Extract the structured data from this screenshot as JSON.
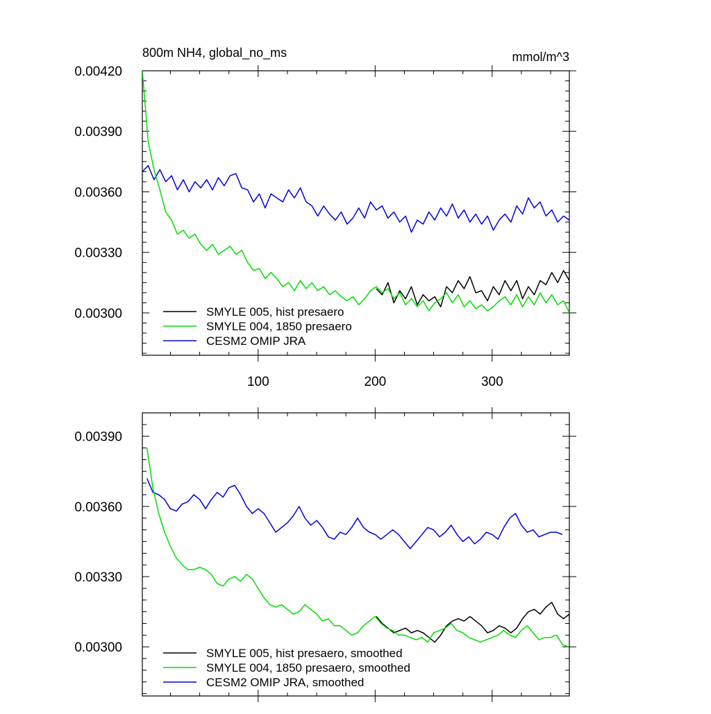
{
  "colors": {
    "hist": "#000000",
    "p1850": "#00dd00",
    "omip": "#0000dd",
    "axis": "#000000",
    "background": "#ffffff"
  },
  "chart_data": [
    {
      "type": "line",
      "title": "800m NH4, global_no_ms",
      "units": "mmol/m^3",
      "xlim": [
        1,
        366
      ],
      "ylim": [
        0.00279,
        0.0042
      ],
      "xticks": [
        100,
        200,
        300
      ],
      "xtick_labels": [
        "100",
        "200",
        "300"
      ],
      "yticks": [
        0.0042,
        0.0039,
        0.0036,
        0.0033,
        0.003
      ],
      "ytick_labels": [
        "0.00420",
        "0.00390",
        "0.00360",
        "0.00330",
        "0.00300"
      ],
      "legend_position": "bottom-left",
      "grid": false,
      "series": [
        {
          "name": "SMYLE 005, hist presaero",
          "color_key": "hist",
          "x_start": 201,
          "x_step": 5,
          "values": [
            0.00312,
            0.00309,
            0.00315,
            0.00305,
            0.00311,
            0.00307,
            0.00313,
            0.00304,
            0.00309,
            0.00306,
            0.00308,
            0.00303,
            0.00313,
            0.0031,
            0.00316,
            0.00312,
            0.00318,
            0.0031,
            0.00311,
            0.00306,
            0.00313,
            0.00309,
            0.00316,
            0.00311,
            0.00316,
            0.00307,
            0.00313,
            0.00309,
            0.00316,
            0.00314,
            0.0032,
            0.00315,
            0.00321,
            0.00316,
            0.00322,
            0.00314,
            0.0032,
            0.00311
          ]
        },
        {
          "name": "SMYLE 004, 1850 presaero",
          "color_key": "p1850",
          "x_start": 1,
          "x_step": 5,
          "values": [
            0.0042,
            0.00385,
            0.00371,
            0.00361,
            0.0035,
            0.00346,
            0.00339,
            0.00341,
            0.00337,
            0.00339,
            0.00334,
            0.00331,
            0.00334,
            0.00329,
            0.00331,
            0.00333,
            0.00329,
            0.00331,
            0.00325,
            0.00321,
            0.00322,
            0.00317,
            0.0032,
            0.00317,
            0.00313,
            0.00315,
            0.00311,
            0.00316,
            0.00312,
            0.00315,
            0.00311,
            0.00313,
            0.00309,
            0.00311,
            0.00308,
            0.00306,
            0.00308,
            0.00304,
            0.00307,
            0.00311,
            0.00313,
            0.0031,
            0.00312,
            0.00307,
            0.0031,
            0.00304,
            0.00307,
            0.00303,
            0.00306,
            0.00301,
            0.00305,
            0.00307,
            0.0031,
            0.00305,
            0.00309,
            0.00303,
            0.00306,
            0.00302,
            0.00304,
            0.00301,
            0.00303,
            0.00306,
            0.00308,
            0.00304,
            0.00309,
            0.00303,
            0.00308,
            0.00304,
            0.0031,
            0.00305,
            0.00309,
            0.00304,
            0.00306,
            0.003
          ]
        },
        {
          "name": "CESM2 OMIP JRA",
          "color_key": "omip",
          "x_start": 1,
          "x_step": 5,
          "values": [
            0.0037,
            0.00373,
            0.00366,
            0.00371,
            0.00365,
            0.00368,
            0.00361,
            0.00366,
            0.0036,
            0.00365,
            0.00362,
            0.00366,
            0.00361,
            0.00367,
            0.00363,
            0.00368,
            0.00369,
            0.00362,
            0.00361,
            0.00355,
            0.00359,
            0.00352,
            0.00359,
            0.00357,
            0.00355,
            0.00361,
            0.00357,
            0.00362,
            0.00355,
            0.00353,
            0.00348,
            0.00353,
            0.00349,
            0.00346,
            0.0035,
            0.00344,
            0.00347,
            0.00352,
            0.00347,
            0.00355,
            0.00351,
            0.00353,
            0.00347,
            0.0035,
            0.00345,
            0.00348,
            0.0034,
            0.00346,
            0.00344,
            0.0035,
            0.00346,
            0.00352,
            0.00348,
            0.00354,
            0.00347,
            0.00351,
            0.00345,
            0.00349,
            0.00344,
            0.00348,
            0.00341,
            0.00346,
            0.00349,
            0.00345,
            0.00353,
            0.00349,
            0.00357,
            0.00352,
            0.00355,
            0.00348,
            0.00351,
            0.00345,
            0.00348,
            0.00346
          ]
        }
      ]
    },
    {
      "type": "line",
      "title": "",
      "xlim": [
        1,
        366
      ],
      "ylim": [
        0.00279,
        0.004
      ],
      "xticks": [
        100,
        200,
        300
      ],
      "xtick_labels": [
        "",
        "",
        ""
      ],
      "yticks": [
        0.0039,
        0.0036,
        0.0033,
        0.003
      ],
      "ytick_labels": [
        "0.00390",
        "0.00360",
        "0.00330",
        "0.00300"
      ],
      "legend_position": "bottom-left",
      "grid": false,
      "series": [
        {
          "name": "SMYLE 005, hist presaero, smoothed",
          "color_key": "hist",
          "x_start": 201,
          "x_step": 5,
          "values": [
            0.00313,
            0.0031,
            0.00308,
            0.00306,
            0.00307,
            0.00308,
            0.00306,
            0.00307,
            0.00306,
            0.00304,
            0.00302,
            0.00305,
            0.00309,
            0.00311,
            0.00312,
            0.00311,
            0.00313,
            0.00311,
            0.00309,
            0.00306,
            0.00307,
            0.00309,
            0.00308,
            0.00306,
            0.00308,
            0.00312,
            0.00315,
            0.00316,
            0.00314,
            0.00317,
            0.00319,
            0.00314,
            0.00312,
            0.00314,
            0.00312,
            0.00314,
            0.00313,
            0.00311
          ]
        },
        {
          "name": "SMYLE 004, 1850 presaero, smoothed",
          "color_key": "p1850",
          "x_start": 5,
          "x_step": 5,
          "values": [
            0.00385,
            0.00368,
            0.00357,
            0.00349,
            0.00343,
            0.00338,
            0.00335,
            0.00333,
            0.00333,
            0.00334,
            0.00333,
            0.00331,
            0.00327,
            0.00326,
            0.00329,
            0.0033,
            0.00328,
            0.00331,
            0.00329,
            0.00325,
            0.00321,
            0.00318,
            0.00317,
            0.00318,
            0.00316,
            0.00314,
            0.00315,
            0.00318,
            0.00316,
            0.00314,
            0.00311,
            0.00312,
            0.00309,
            0.00309,
            0.00307,
            0.00305,
            0.00306,
            0.00309,
            0.00311,
            0.00313,
            0.0031,
            0.00308,
            0.00307,
            0.00305,
            0.00305,
            0.00304,
            0.00303,
            0.00304,
            0.00302,
            0.00306,
            0.00307,
            0.00308,
            0.0031,
            0.00307,
            0.00306,
            0.00304,
            0.00303,
            0.00302,
            0.00303,
            0.00304,
            0.00305,
            0.00307,
            0.00305,
            0.00304,
            0.00307,
            0.00309,
            0.00306,
            0.00303,
            0.00304,
            0.00304,
            0.00305,
            0.00301,
            0.003
          ]
        },
        {
          "name": "CESM2 OMIP JRA, smoothed",
          "color_key": "omip",
          "x_start": 5,
          "x_step": 5,
          "values": [
            0.00372,
            0.00366,
            0.00365,
            0.00363,
            0.00359,
            0.00358,
            0.00361,
            0.00362,
            0.00365,
            0.00363,
            0.00359,
            0.00363,
            0.00366,
            0.00364,
            0.00368,
            0.00369,
            0.00365,
            0.0036,
            0.00357,
            0.00359,
            0.00357,
            0.00353,
            0.00349,
            0.00351,
            0.00353,
            0.00356,
            0.0036,
            0.00355,
            0.00352,
            0.00354,
            0.00351,
            0.00347,
            0.00346,
            0.00349,
            0.00348,
            0.00351,
            0.00355,
            0.00351,
            0.00349,
            0.00348,
            0.00346,
            0.00348,
            0.0035,
            0.00348,
            0.00345,
            0.00342,
            0.00345,
            0.00348,
            0.00351,
            0.0035,
            0.00347,
            0.00349,
            0.00352,
            0.00348,
            0.00345,
            0.00347,
            0.00344,
            0.00346,
            0.00349,
            0.00348,
            0.00346,
            0.00351,
            0.00355,
            0.00357,
            0.00352,
            0.00349,
            0.0035,
            0.00347,
            0.00348,
            0.00349,
            0.00349,
            0.00348
          ]
        }
      ]
    }
  ]
}
